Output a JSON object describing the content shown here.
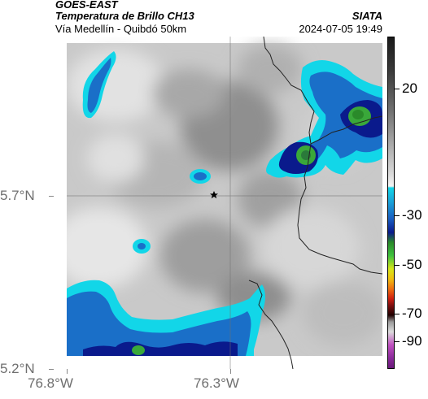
{
  "header": {
    "satellite": "GOES-EAST",
    "product": "Temperatura de Brillo CH13",
    "region": "Vía Medellín - Quibdó 50km",
    "org": "SIATA",
    "datetime": "2024-07-05 19:49"
  },
  "map": {
    "lat_ticks": [
      "5.7°N",
      "5.2°N"
    ],
    "lon_ticks": [
      "76.8°W",
      "76.3°W"
    ],
    "marker": "star",
    "grid": true,
    "colors": {
      "cold_cloud": "#1a6fc8",
      "cyan_edge": "#12d6e8",
      "deep_blue": "#0a1a8c",
      "convective_green": "#3aa83a",
      "gray_scale_light": "#e6e6e6",
      "gray_scale_dark": "#7a7a7a"
    }
  },
  "colorbar": {
    "labels": [
      "20",
      "-30",
      "-50",
      "-70",
      "-90"
    ],
    "units": ""
  }
}
